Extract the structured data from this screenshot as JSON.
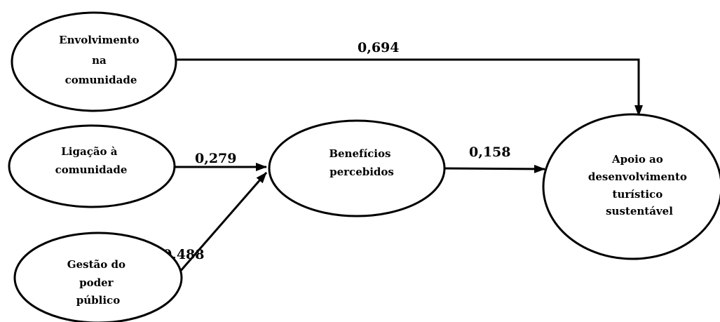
{
  "nodes": {
    "envolvimento": {
      "lines": [
        "Envolvimento",
        "na",
        "comunidade"
      ]
    },
    "ligacao": {
      "lines": [
        "Ligação à",
        "comunidade"
      ]
    },
    "gestao": {
      "lines": [
        "Gestão do",
        "poder",
        "público"
      ]
    },
    "beneficios": {
      "lines": [
        "Benefícios",
        "percebidos"
      ]
    },
    "apoio": {
      "lines": [
        "Apoio ao",
        "desenvolvimento",
        "turístico",
        "sustentável"
      ]
    }
  },
  "edges": {
    "envolvimento_apoio": {
      "label": "0,694"
    },
    "ligacao_beneficios": {
      "label": "0,279"
    },
    "gestao_beneficios": {
      "label": "0,488"
    },
    "beneficios_apoio": {
      "label": "0,158"
    }
  }
}
